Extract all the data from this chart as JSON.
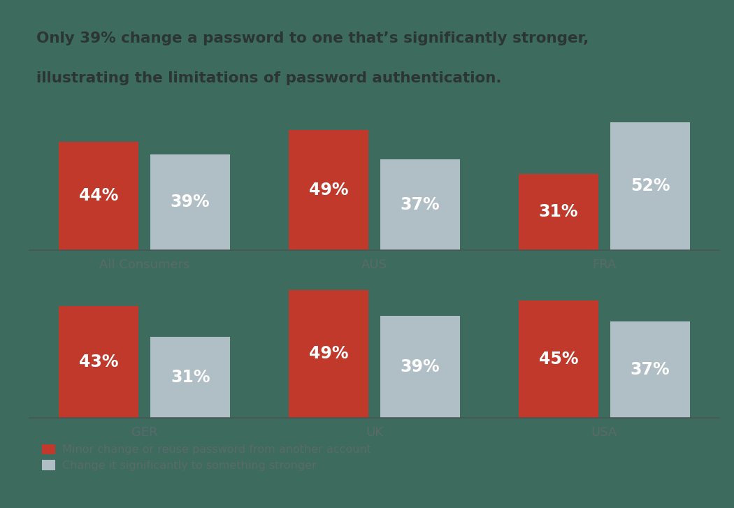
{
  "title_line1": "Only 39% change a password to one that’s significantly stronger,",
  "title_line2": "illustrating the limitations of password authentication.",
  "background_color": "#3d6b5e",
  "bar_color_red": "#c0392b",
  "bar_color_gray": "#b0bec5",
  "title_color": "#2c3535",
  "label_color": "#5a6a6a",
  "groups_row1": [
    "All Consumers",
    "AUS",
    "FRA"
  ],
  "groups_row2": [
    "GER",
    "UK",
    "USA"
  ],
  "red_values_row1": [
    44,
    49,
    31
  ],
  "gray_values_row1": [
    39,
    37,
    52
  ],
  "red_values_row2": [
    43,
    49,
    45
  ],
  "gray_values_row2": [
    31,
    39,
    37
  ],
  "legend_red": "Minor change or reuse password from another account",
  "legend_gray": "Change it significantly to something stronger",
  "label_fontsize": 17,
  "category_fontsize": 13,
  "title_fontsize": 15.5,
  "legend_fontsize": 11.5
}
